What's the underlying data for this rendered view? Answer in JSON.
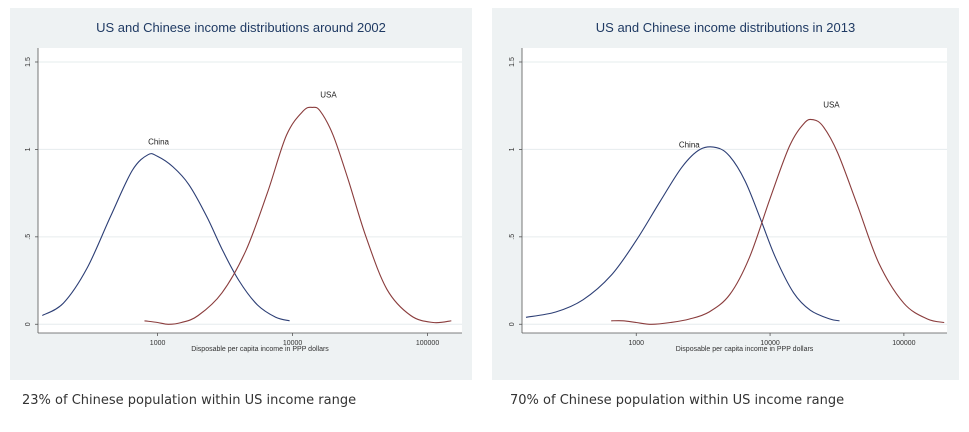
{
  "chart_data": [
    {
      "type": "line",
      "title": "US and Chinese income distributions around 2002",
      "xlabel": "Disposable per capita income in PPP dollars",
      "ylabel": "",
      "x_scale": "log",
      "xlim": [
        130,
        180000
      ],
      "ylim": [
        -0.05,
        1.58
      ],
      "x_ticks": [
        1000,
        10000,
        100000
      ],
      "x_tick_labels": [
        "1000",
        "10000",
        "100000"
      ],
      "y_ticks": [
        0,
        0.5,
        1,
        1.5
      ],
      "y_tick_labels": [
        "0",
        ".5",
        "1",
        "1.5"
      ],
      "grid": true,
      "series": [
        {
          "name": "China",
          "color": "#2c3e75",
          "x": [
            140,
            200,
            300,
            450,
            650,
            850,
            1000,
            1300,
            1700,
            2300,
            3000,
            4000,
            5500,
            7500,
            9500
          ],
          "y": [
            0.05,
            0.12,
            0.32,
            0.62,
            0.88,
            0.97,
            0.96,
            0.9,
            0.8,
            0.62,
            0.43,
            0.25,
            0.11,
            0.04,
            0.02
          ]
        },
        {
          "name": "USA",
          "color": "#8a3c3c",
          "x": [
            800,
            1000,
            1200,
            1500,
            2000,
            3000,
            4500,
            6500,
            9000,
            12000,
            14000,
            16000,
            20000,
            26000,
            35000,
            50000,
            75000,
            110000,
            150000
          ],
          "y": [
            0.02,
            0.01,
            0.0,
            0.01,
            0.05,
            0.18,
            0.42,
            0.75,
            1.08,
            1.22,
            1.24,
            1.22,
            1.08,
            0.82,
            0.5,
            0.2,
            0.05,
            0.01,
            0.02
          ]
        }
      ]
    },
    {
      "type": "line",
      "title": "US and Chinese income distributions in 2013",
      "xlabel": "Disposable per capita income in PPP dollars",
      "ylabel": "",
      "x_scale": "log",
      "xlim": [
        140,
        210000
      ],
      "ylim": [
        -0.05,
        1.58
      ],
      "x_ticks": [
        1000,
        10000,
        100000
      ],
      "x_tick_labels": [
        "1000",
        "10000",
        "100000"
      ],
      "y_ticks": [
        0,
        0.5,
        1,
        1.5
      ],
      "y_tick_labels": [
        "0",
        ".5",
        "1",
        "1.5"
      ],
      "grid": true,
      "series": [
        {
          "name": "China",
          "color": "#2c3e75",
          "x": [
            150,
            250,
            400,
            650,
            1000,
            1500,
            2200,
            3000,
            4000,
            5000,
            6500,
            8500,
            11000,
            15000,
            20000,
            28000,
            33000
          ],
          "y": [
            0.04,
            0.07,
            0.14,
            0.28,
            0.48,
            0.7,
            0.9,
            1.0,
            1.01,
            0.96,
            0.82,
            0.6,
            0.38,
            0.18,
            0.08,
            0.03,
            0.02
          ]
        },
        {
          "name": "USA",
          "color": "#8a3c3c",
          "x": [
            650,
            800,
            1000,
            1300,
            1800,
            2500,
            3500,
            5000,
            7000,
            10000,
            14000,
            18000,
            21000,
            25000,
            32000,
            45000,
            65000,
            100000,
            150000,
            200000
          ],
          "y": [
            0.02,
            0.02,
            0.01,
            0.0,
            0.01,
            0.03,
            0.07,
            0.17,
            0.38,
            0.72,
            1.02,
            1.15,
            1.17,
            1.13,
            0.98,
            0.68,
            0.35,
            0.12,
            0.03,
            0.01
          ]
        }
      ]
    }
  ],
  "captions": [
    "23% of Chinese population within US income range",
    "70% of Chinese population within US income range"
  ]
}
